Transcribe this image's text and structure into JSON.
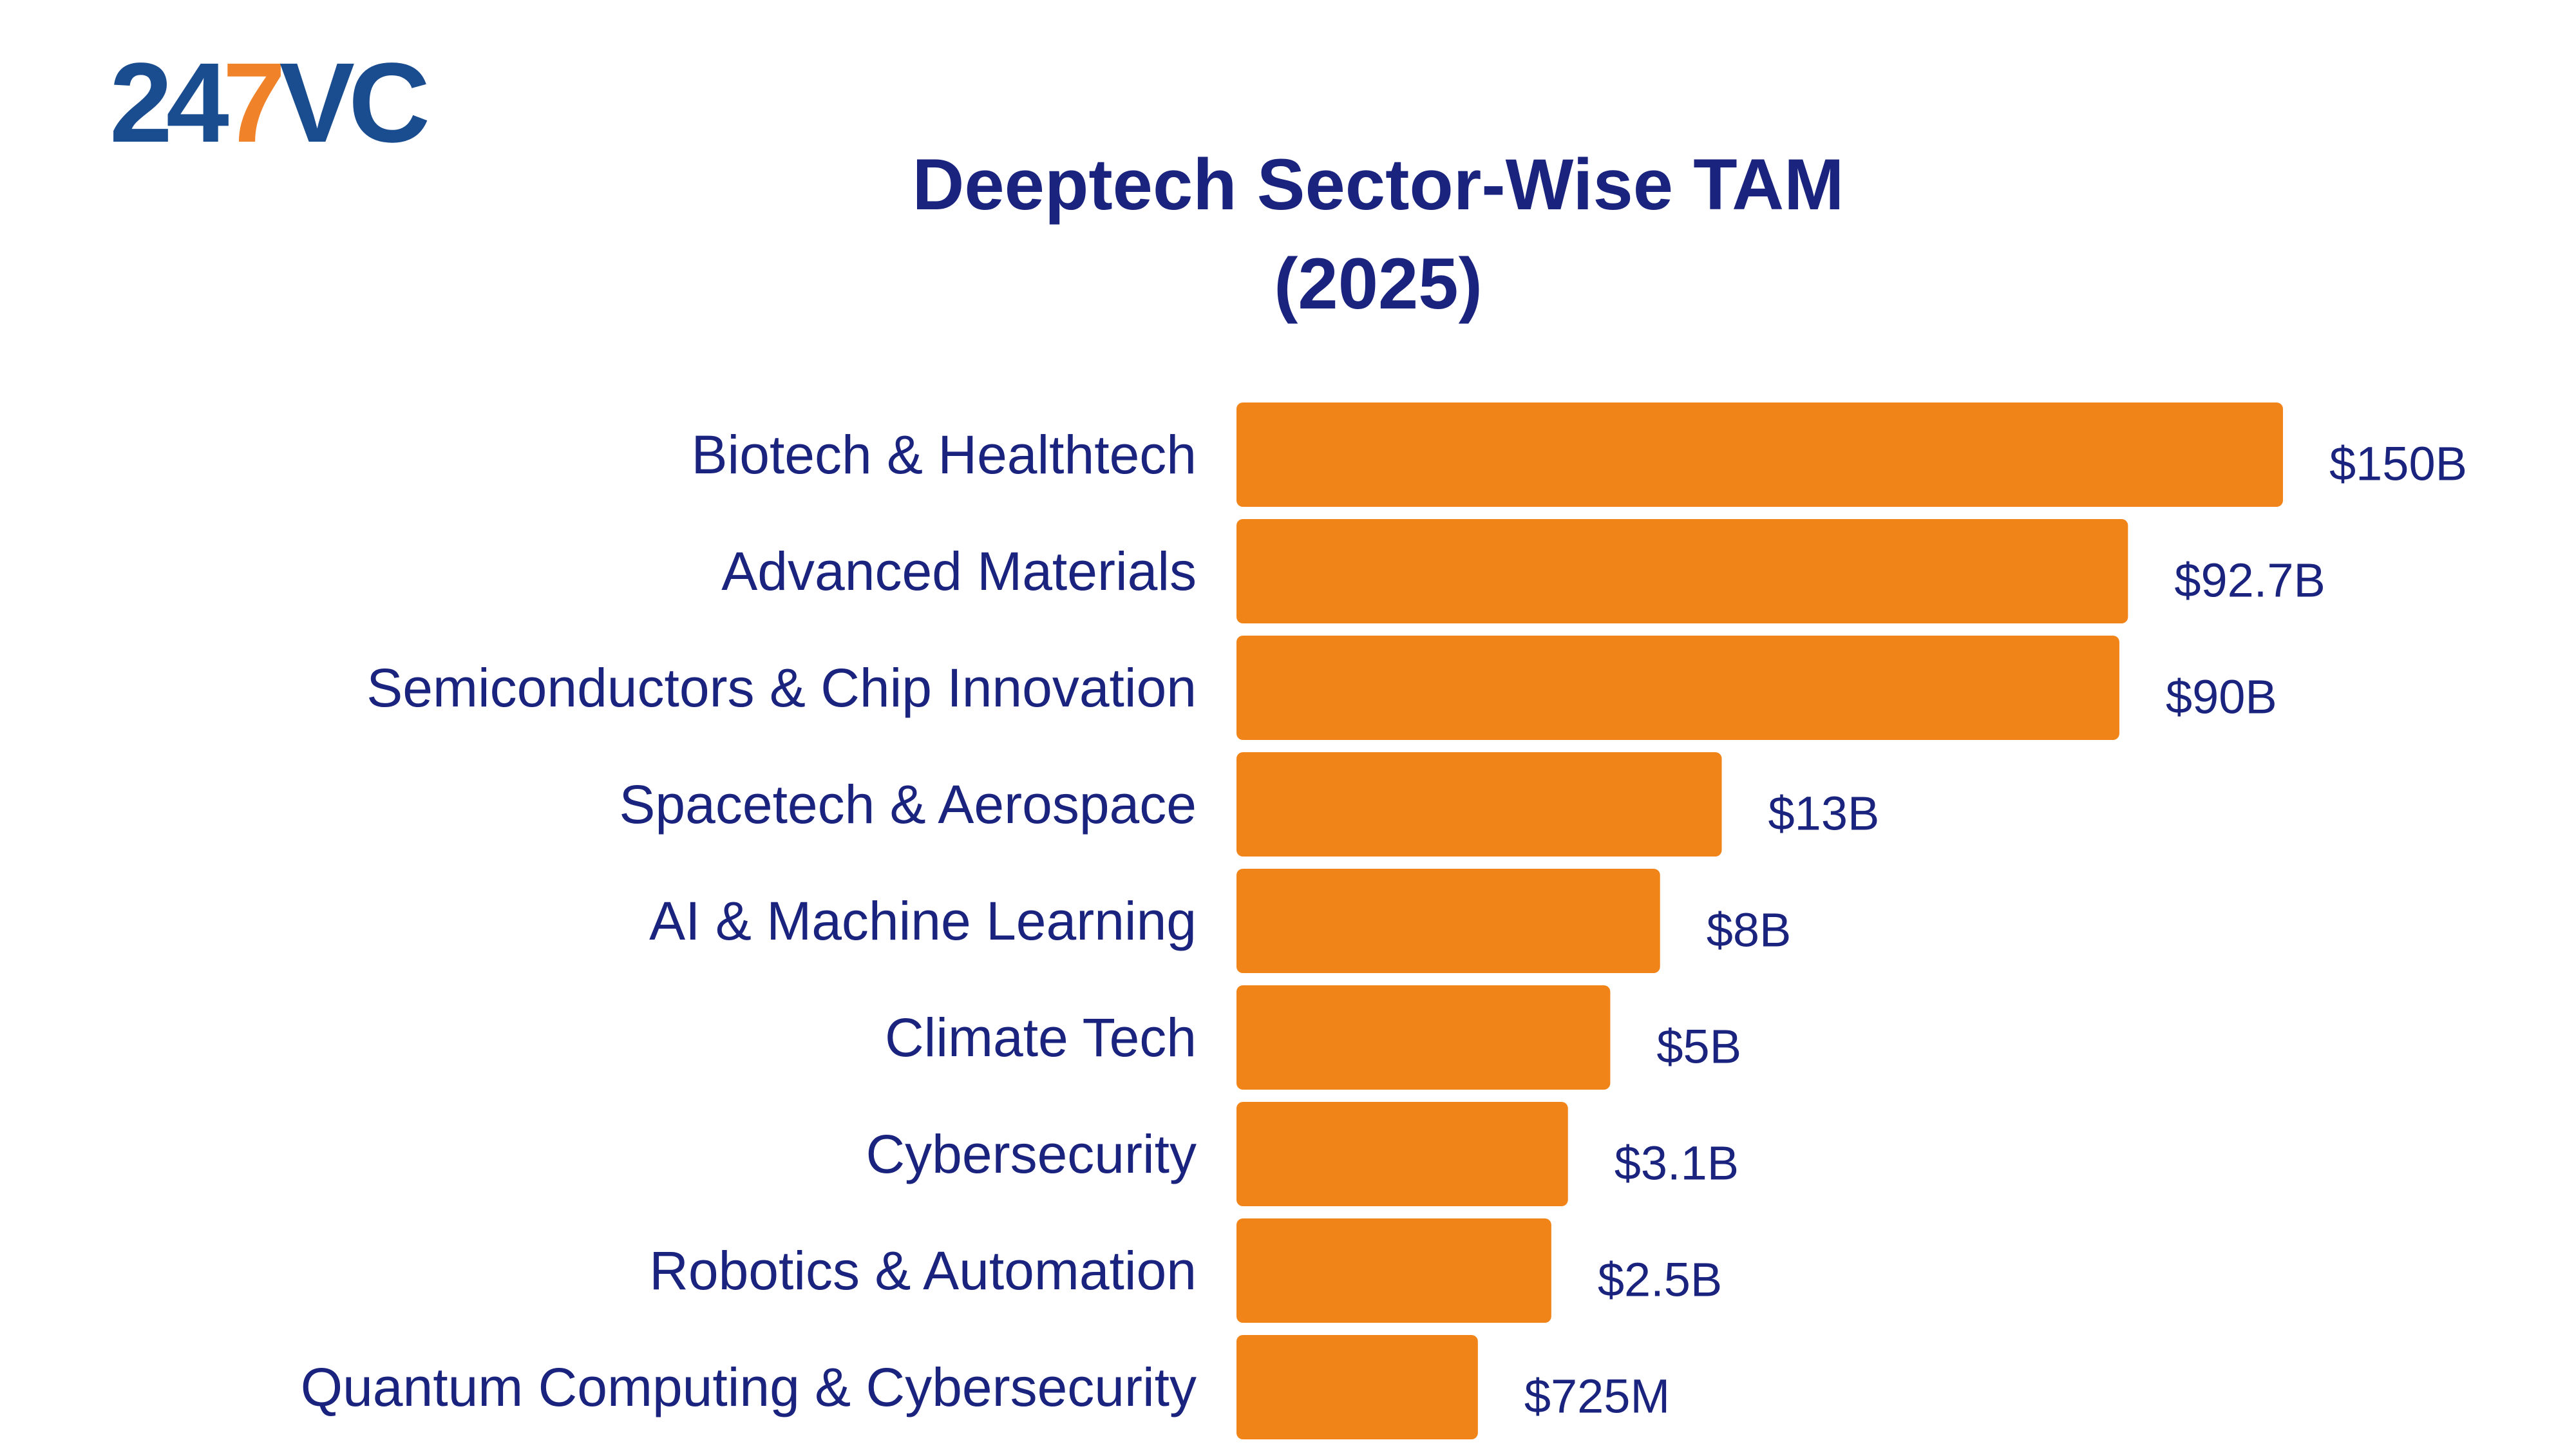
{
  "brand": {
    "logo_digits": "24",
    "logo_seven": "7",
    "logo_letters": "VC",
    "primary_color": "#1a4d8f",
    "accent_color": "#f0822a"
  },
  "colors": {
    "bar": "#f08418",
    "text": "#1a237e"
  },
  "chart_data": {
    "type": "bar",
    "orientation": "horizontal",
    "title": "Deeptech Sector-Wise TAM",
    "subtitle": "(2025)",
    "xlabel": "",
    "ylabel": "",
    "grid": false,
    "categories": [
      "Biotech & Healthtech",
      "Advanced Materials",
      "Semiconductors & Chip Innovation",
      "Spacetech & Aerospace",
      "AI & Machine Learning",
      "Climate Tech",
      "Cybersecurity",
      "Robotics & Automation",
      "Quantum Computing & Cybersecurity"
    ],
    "values": [
      150,
      92.7,
      90,
      13,
      8,
      5,
      3.1,
      2.5,
      0.725
    ],
    "value_unit": "billion USD",
    "data_labels": [
      "$150B",
      "$92.7B",
      "$90B",
      "$13B",
      "$8B",
      "$5B",
      "$3.1B",
      "$2.5B",
      "$725M"
    ]
  }
}
